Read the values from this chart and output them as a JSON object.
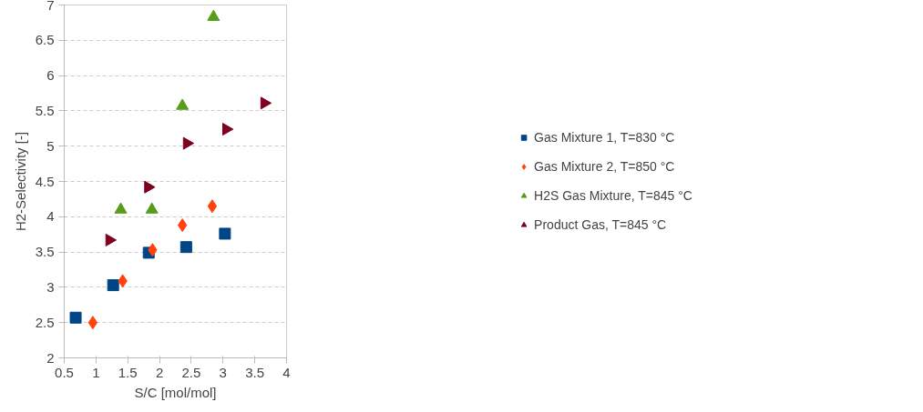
{
  "chart_data": {
    "type": "scatter",
    "xlabel": "S/C [mol/mol]",
    "ylabel": "H2-Selectivity [-]",
    "xlim": [
      0.5,
      4
    ],
    "xticks": [
      0.5,
      1,
      1.5,
      2,
      2.5,
      3,
      3.5,
      4
    ],
    "ylim": [
      2,
      7
    ],
    "yticks": [
      2,
      2.5,
      3,
      3.5,
      4,
      4.5,
      5,
      5.5,
      6,
      6.5,
      7
    ],
    "grid": "y",
    "legend": "right",
    "series": [
      {
        "name": "Gas Mixture 1, T=830 °C",
        "color": "#004586",
        "marker": "square",
        "x": [
          0.68,
          1.27,
          1.83,
          2.42,
          3.03
        ],
        "values": [
          2.57,
          3.03,
          3.49,
          3.57,
          3.76
        ]
      },
      {
        "name": "Gas Mixture 2, T=850 °C",
        "color": "#ff420e",
        "marker": "diamond",
        "x": [
          0.95,
          1.42,
          1.89,
          2.36,
          2.83
        ],
        "values": [
          2.5,
          3.09,
          3.53,
          3.88,
          4.15
        ]
      },
      {
        "name": "H2S Gas Mixture, T=845 °C",
        "color": "#579d1c",
        "marker": "triangle",
        "x": [
          1.39,
          1.88,
          2.36,
          2.85
        ],
        "values": [
          4.1,
          4.1,
          5.57,
          6.83
        ]
      },
      {
        "name": "Product Gas, T=845 °C",
        "color": "#7e0021",
        "marker": "triangle_right",
        "x": [
          1.21,
          1.82,
          2.43,
          3.05,
          3.65
        ],
        "values": [
          3.67,
          4.42,
          5.04,
          5.24,
          5.61
        ]
      }
    ]
  }
}
